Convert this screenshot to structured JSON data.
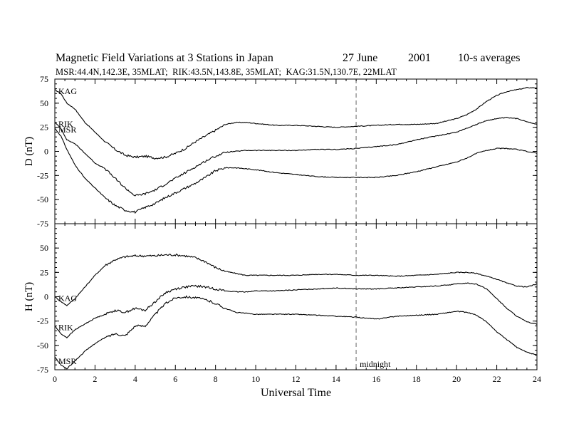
{
  "header": {
    "title": "Magnetic Field Variations at 3 Stations in Japan",
    "date_day_month": "27 June",
    "year": "2001",
    "averaging": "10-s averages",
    "stations_line": "MSR:44.4N,142.3E, 35MLAT;  RIK:43.5N,143.8E, 35MLAT;  KAG:31.5N,130.7E, 22MLAT"
  },
  "chart_data": [
    {
      "type": "line",
      "panel": "top",
      "ylabel": "D (nT)",
      "ylim": [
        -75,
        75
      ],
      "yticks": [
        "75",
        "50",
        "25",
        "0",
        "-25",
        "-50",
        "-75"
      ],
      "grid": false,
      "series": [
        {
          "name": "KAG",
          "x": [
            0,
            0.3,
            0.6,
            1,
            1.5,
            2,
            2.5,
            3,
            3.5,
            4,
            4.5,
            5,
            5.5,
            6,
            6.5,
            7,
            7.5,
            8,
            8.5,
            9,
            9.5,
            10,
            11,
            12,
            13,
            14,
            15,
            16,
            17,
            18,
            19,
            20,
            20.5,
            21,
            21.5,
            22,
            22.5,
            23,
            23.5,
            24
          ],
          "y": [
            64,
            60,
            50,
            44,
            30,
            20,
            10,
            2,
            -4,
            -6,
            -5,
            -7,
            -6,
            -2,
            3,
            10,
            16,
            22,
            28,
            30,
            30,
            29,
            27,
            27,
            26,
            25,
            26,
            27,
            28,
            28,
            29,
            34,
            38,
            44,
            52,
            58,
            62,
            64,
            66,
            66
          ]
        },
        {
          "name": "RIK",
          "x": [
            0,
            0.3,
            0.6,
            1,
            1.5,
            2,
            2.5,
            3,
            3.5,
            4,
            4.5,
            5,
            5.5,
            6,
            6.5,
            7,
            7.5,
            8,
            8.5,
            9,
            9.5,
            10,
            11,
            12,
            13,
            14,
            15,
            16,
            17,
            18,
            19,
            20,
            20.5,
            21,
            21.5,
            22,
            22.5,
            23,
            23.5,
            24
          ],
          "y": [
            30,
            24,
            12,
            8,
            -2,
            -12,
            -18,
            -28,
            -38,
            -46,
            -44,
            -40,
            -34,
            -28,
            -22,
            -16,
            -10,
            -5,
            -1,
            0,
            1,
            1,
            1,
            1,
            2,
            2,
            3,
            5,
            7,
            12,
            16,
            20,
            24,
            28,
            32,
            34,
            35,
            34,
            31,
            28
          ]
        },
        {
          "name": "MSR",
          "x": [
            0,
            0.3,
            0.6,
            1,
            1.5,
            2,
            2.5,
            3,
            3.5,
            4,
            4.5,
            5,
            5.5,
            6,
            6.5,
            7,
            7.5,
            8,
            8.5,
            9,
            9.5,
            10,
            11,
            12,
            13,
            14,
            15,
            16,
            17,
            18,
            19,
            20,
            20.5,
            21,
            21.5,
            22,
            22.5,
            23,
            23.5,
            24
          ],
          "y": [
            24,
            16,
            2,
            -14,
            -28,
            -38,
            -48,
            -56,
            -61,
            -63,
            -58,
            -54,
            -48,
            -43,
            -38,
            -33,
            -27,
            -20,
            -17,
            -17,
            -18,
            -19,
            -22,
            -24,
            -26,
            -27,
            -27,
            -27,
            -25,
            -21,
            -16,
            -11,
            -7,
            -2,
            1,
            3,
            3,
            2,
            0,
            -2
          ]
        }
      ]
    },
    {
      "type": "line",
      "panel": "bottom",
      "ylabel": "H (nT)",
      "xlabel": "Universal Time",
      "xlim": [
        0,
        24
      ],
      "xticks": [
        "0",
        "2",
        "4",
        "6",
        "8",
        "10",
        "12",
        "14",
        "16",
        "18",
        "20",
        "22",
        "24"
      ],
      "ylim": [
        -75,
        75
      ],
      "yticks": [
        "50",
        "25",
        "0",
        "-25",
        "-50",
        "-75"
      ],
      "grid": false,
      "annotation": {
        "x": 15,
        "text": "midnight",
        "style": "dashed vertical line"
      },
      "series": [
        {
          "name": "KAG",
          "x": [
            0,
            0.3,
            0.6,
            1,
            1.5,
            2,
            2.5,
            3,
            3.5,
            4,
            4.5,
            5,
            5.5,
            6,
            6.5,
            7,
            7.5,
            8,
            8.5,
            9,
            9.5,
            10,
            11,
            12,
            13,
            14,
            15,
            16,
            17,
            18,
            19,
            20,
            20.5,
            21,
            21.5,
            22,
            22.5,
            23,
            23.5,
            24
          ],
          "y": [
            0,
            -5,
            -9,
            -2,
            10,
            22,
            32,
            38,
            41,
            42,
            42,
            42,
            43,
            43,
            42,
            40,
            36,
            30,
            26,
            24,
            22,
            22,
            22,
            22,
            23,
            23,
            22,
            22,
            21,
            22,
            23,
            25,
            25,
            24,
            21,
            18,
            14,
            11,
            10,
            13
          ]
        },
        {
          "name": "RIK",
          "x": [
            0,
            0.3,
            0.6,
            1,
            1.5,
            2,
            2.5,
            3,
            3.5,
            4,
            4.5,
            5,
            5.5,
            6,
            6.5,
            7,
            7.5,
            8,
            8.5,
            9,
            9.5,
            10,
            11,
            12,
            13,
            14,
            15,
            16,
            17,
            18,
            19,
            20,
            20.5,
            21,
            21.5,
            22,
            22.5,
            23,
            23.5,
            24
          ],
          "y": [
            -30,
            -38,
            -42,
            -34,
            -28,
            -22,
            -18,
            -14,
            -16,
            -12,
            -14,
            -5,
            4,
            8,
            10,
            11,
            10,
            8,
            6,
            5,
            5,
            6,
            6,
            7,
            8,
            9,
            8,
            8,
            9,
            10,
            11,
            13,
            14,
            13,
            8,
            -2,
            -12,
            -20,
            -26,
            -28
          ]
        },
        {
          "name": "MSR",
          "x": [
            0,
            0.3,
            0.6,
            1,
            1.5,
            2,
            2.5,
            3,
            3.5,
            4,
            4.5,
            5,
            5.5,
            6,
            6.5,
            7,
            7.5,
            8,
            8.5,
            9,
            9.5,
            10,
            11,
            12,
            13,
            14,
            15,
            16,
            17,
            18,
            19,
            20,
            20.5,
            21,
            21.5,
            22,
            22.5,
            23,
            23.5,
            24
          ],
          "y": [
            -62,
            -70,
            -74,
            -66,
            -56,
            -48,
            -42,
            -38,
            -40,
            -30,
            -30,
            -18,
            -7,
            -1,
            0,
            -1,
            -3,
            -7,
            -12,
            -16,
            -17,
            -18,
            -18,
            -18,
            -19,
            -20,
            -21,
            -23,
            -20,
            -19,
            -18,
            -15,
            -16,
            -19,
            -26,
            -36,
            -44,
            -52,
            -57,
            -60
          ]
        }
      ]
    }
  ]
}
